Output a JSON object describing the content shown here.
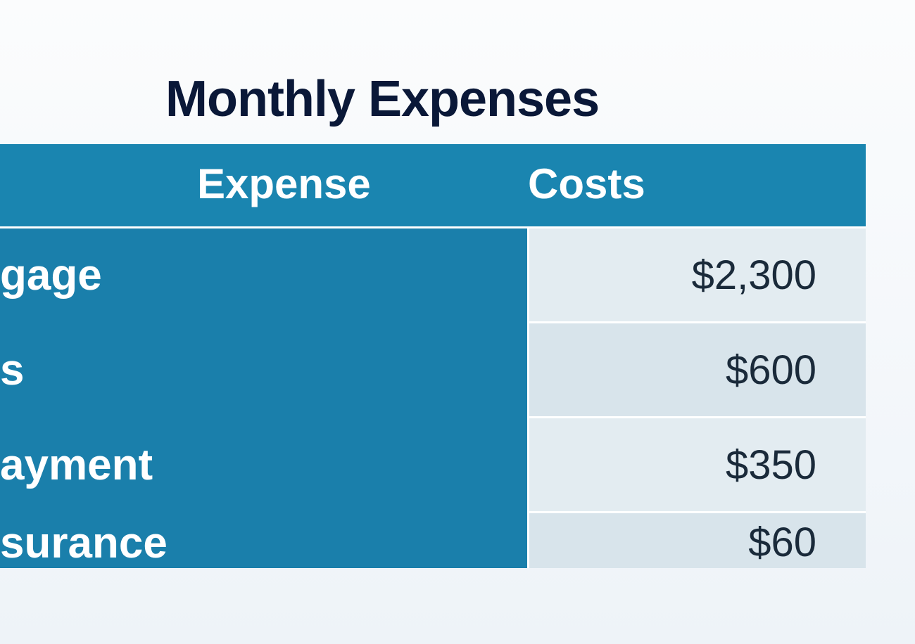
{
  "table": {
    "title": "Monthly Expenses",
    "title_fontsize": 72,
    "title_color": "#0a1838",
    "columns": [
      {
        "key": "expense",
        "label": "Expense"
      },
      {
        "key": "costs",
        "label": "Costs"
      }
    ],
    "header_bg": "#1a85b0",
    "header_text_color": "#ffffff",
    "header_fontsize": 60,
    "expense_col_bg": "#1a7fab",
    "expense_col_text_color": "#ffffff",
    "cost_col_bg_odd": "#e3ecf1",
    "cost_col_bg_even": "#d8e4eb",
    "cost_text_color": "#1a2a3a",
    "border_color": "#ffffff",
    "cell_fontsize": 62,
    "rows": [
      {
        "expense": "gage",
        "cost": "$2,300"
      },
      {
        "expense": "s",
        "cost": "$600"
      },
      {
        "expense": "ayment",
        "cost": "$350"
      },
      {
        "expense": "surance",
        "cost": "$60"
      }
    ]
  },
  "background_gradient": {
    "top": "#fbfcfd",
    "mid": "#f5f8fb",
    "bottom": "#eef3f8"
  }
}
